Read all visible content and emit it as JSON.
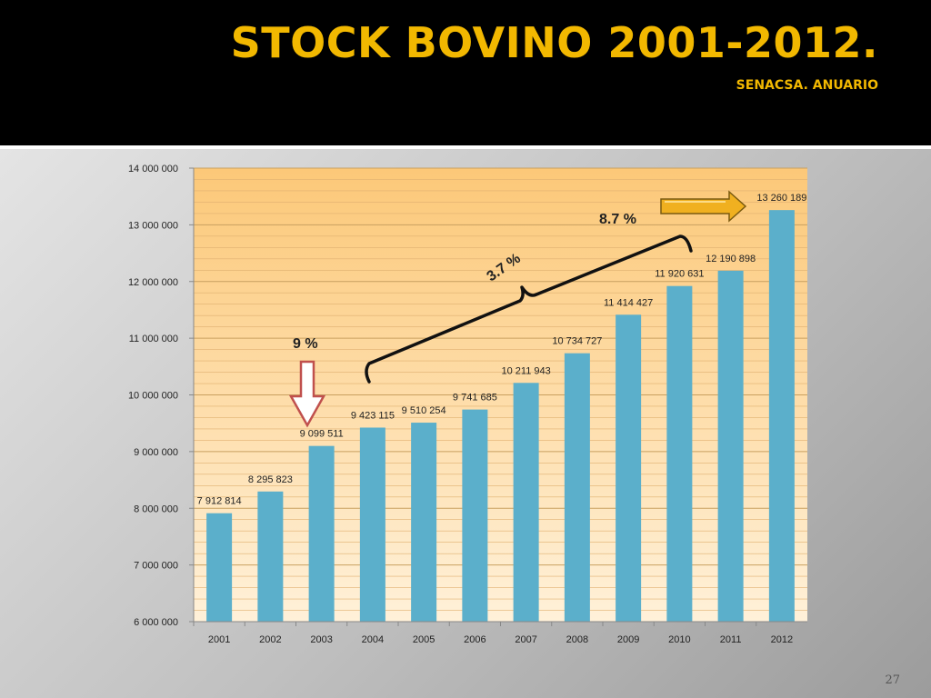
{
  "slide": {
    "title": "STOCK BOVINO 2001-2012.",
    "subtitle": "SENACSA. ANUARIO",
    "page_number": "27"
  },
  "annotations": {
    "pct_9": "9 %",
    "pct_3_7": "3.7 %",
    "pct_8_7": "8.7 %"
  },
  "colors": {
    "title": "#f2b800",
    "bar": "#5bafcb",
    "plot_top": "#fcc878",
    "plot_bottom": "#fff1d9",
    "down_arrow_fill": "#ffffff",
    "down_arrow_stroke": "#c0504d",
    "right_arrow_fill": "#f0b020"
  },
  "chart_data": {
    "type": "bar",
    "title": "",
    "xlabel": "",
    "ylabel": "",
    "ylim": [
      6000000,
      14000000
    ],
    "yticks": [
      6000000,
      7000000,
      8000000,
      9000000,
      10000000,
      11000000,
      12000000,
      13000000,
      14000000
    ],
    "ytick_labels": [
      "6 000 000",
      "7 000 000",
      "8 000 000",
      "9 000 000",
      "10 000 000",
      "11 000 000",
      "12 000 000",
      "13 000 000",
      "14 000 000"
    ],
    "categories": [
      "2001",
      "2002",
      "2003",
      "2004",
      "2005",
      "2006",
      "2007",
      "2008",
      "2009",
      "2010",
      "2011",
      "2012"
    ],
    "values": [
      7912814,
      8295823,
      9099511,
      9423115,
      9510254,
      9741685,
      10211943,
      10734727,
      11414427,
      11920631,
      12190898,
      13260189
    ],
    "value_labels": [
      "7 912 814",
      "8 295 823",
      "9 099 511",
      "9 423 115",
      "9 510 254",
      "9 741 685",
      "10 211 943",
      "10 734 727",
      "11 414 427",
      "11 920 631",
      "12 190 898",
      "13 260 189"
    ],
    "grid": true,
    "legend": "none"
  }
}
